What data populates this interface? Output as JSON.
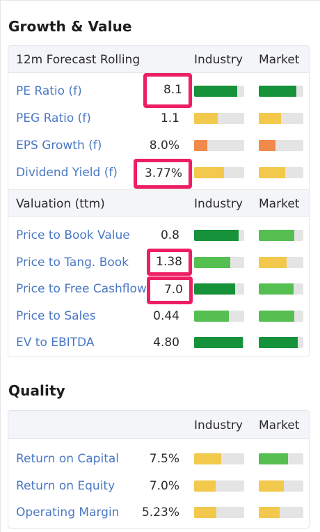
{
  "colors": {
    "dark_green": "#16923a",
    "light_green": "#56bf51",
    "yellow": "#f2c94c",
    "orange": "#f08a4b",
    "highlight": "#ee1e65",
    "link": "#4a78c4"
  },
  "growth": {
    "title": "Growth & Value",
    "forecast_header": {
      "label": "12m Forecast Rolling",
      "industry": "Industry",
      "market": "Market"
    },
    "forecast_rows": [
      {
        "label": "PE Ratio (f)",
        "value": "8.1",
        "industry": {
          "level": 0.86,
          "color": "#16923a"
        },
        "market": {
          "level": 0.84,
          "color": "#16923a"
        },
        "highlight": true
      },
      {
        "label": "PEG Ratio (f)",
        "value": "1.1",
        "industry": {
          "level": 0.47,
          "color": "#f2c94c"
        },
        "market": {
          "level": 0.5,
          "color": "#f2c94c"
        },
        "highlight": false
      },
      {
        "label": "EPS Growth (f)",
        "value": "8.0%",
        "industry": {
          "level": 0.26,
          "color": "#f08a4b"
        },
        "market": {
          "level": 0.38,
          "color": "#f08a4b"
        },
        "highlight": false
      },
      {
        "label": "Dividend Yield (f)",
        "value": "3.77%",
        "industry": {
          "level": 0.6,
          "color": "#f2c94c"
        },
        "market": {
          "level": 0.59,
          "color": "#f2c94c"
        },
        "highlight": true
      }
    ],
    "valuation_header": {
      "label": "Valuation (ttm)",
      "industry": "Industry",
      "market": "Market"
    },
    "valuation_rows": [
      {
        "label": "Price to Book Value",
        "value": "0.8",
        "industry": {
          "level": 0.89,
          "color": "#16923a"
        },
        "market": {
          "level": 0.8,
          "color": "#56bf51"
        },
        "highlight": false
      },
      {
        "label": "Price to Tang. Book",
        "value": "1.38",
        "industry": {
          "level": 0.72,
          "color": "#56bf51"
        },
        "market": {
          "level": 0.62,
          "color": "#f2c94c"
        },
        "highlight": true
      },
      {
        "label": "Price to Free Cashflow",
        "value": "7.0",
        "industry": {
          "level": 0.82,
          "color": "#16923a"
        },
        "market": {
          "level": 0.78,
          "color": "#56bf51"
        },
        "highlight": true
      },
      {
        "label": "Price to Sales",
        "value": "0.44",
        "industry": {
          "level": 0.7,
          "color": "#56bf51"
        },
        "market": {
          "level": 0.8,
          "color": "#56bf51"
        },
        "highlight": false
      },
      {
        "label": "EV to EBITDA",
        "value": "4.80",
        "industry": {
          "level": 0.97,
          "color": "#16923a"
        },
        "market": {
          "level": 0.88,
          "color": "#16923a"
        },
        "highlight": false
      }
    ]
  },
  "quality": {
    "title": "Quality",
    "header": {
      "industry": "Industry",
      "market": "Market"
    },
    "rows": [
      {
        "label": "Return on Capital",
        "value": "7.5%",
        "industry": {
          "level": 0.54,
          "color": "#f2c94c"
        },
        "market": {
          "level": 0.66,
          "color": "#56bf51"
        }
      },
      {
        "label": "Return on Equity",
        "value": "7.0%",
        "industry": {
          "level": 0.43,
          "color": "#f2c94c"
        },
        "market": {
          "level": 0.56,
          "color": "#f2c94c"
        }
      },
      {
        "label": "Operating Margin",
        "value": "5.23%",
        "industry": {
          "level": 0.44,
          "color": "#f2c94c"
        },
        "market": {
          "level": 0.47,
          "color": "#f2c94c"
        }
      }
    ]
  }
}
